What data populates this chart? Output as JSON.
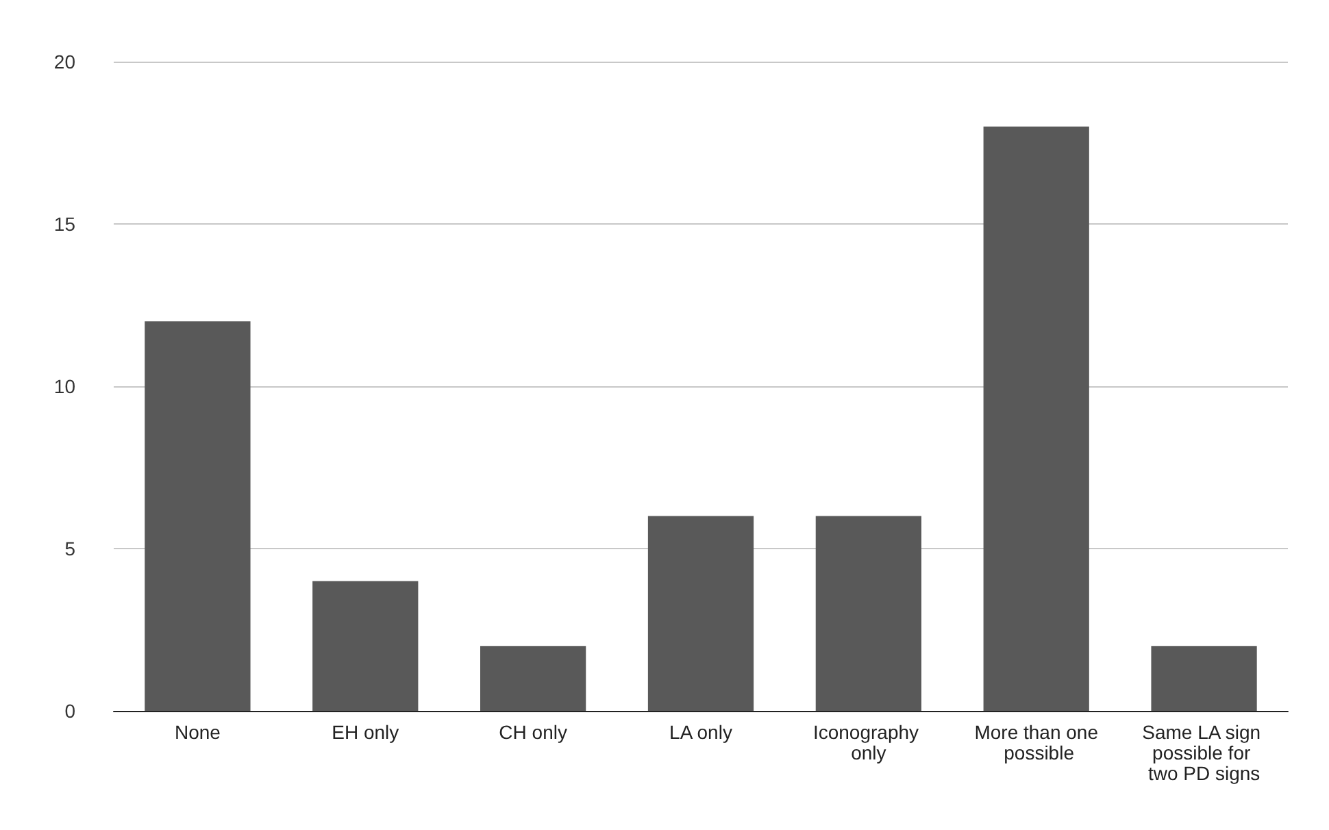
{
  "chart_data": {
    "type": "bar",
    "categories": [
      "None",
      "EH only",
      "CH only",
      "LA only",
      "Iconography only",
      "More than one possible",
      "Same LA sign possible for two PD signs"
    ],
    "values": [
      12,
      4,
      2,
      6,
      6,
      18,
      2
    ],
    "color": "#595959",
    "ylim": [
      0,
      20
    ],
    "yticks": [
      0,
      5,
      10,
      15,
      20
    ],
    "grid": "y"
  }
}
